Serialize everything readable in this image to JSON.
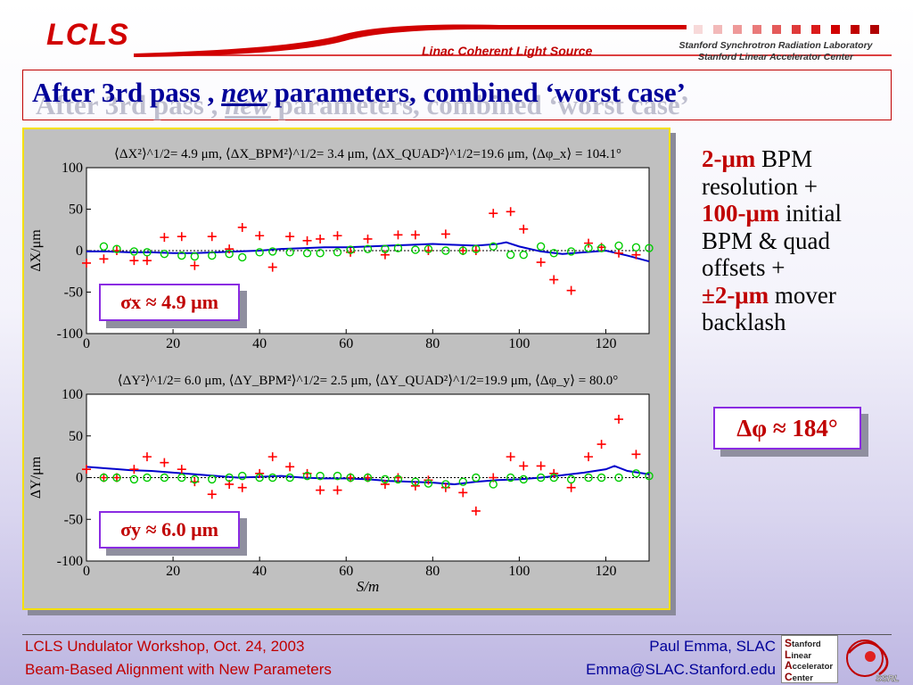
{
  "header": {
    "logo_text": "LCLS",
    "subtitle": "Linac Coherent Light Source",
    "lab_line1": "Stanford Synchrotron Radiation Laboratory",
    "lab_line2": "Stanford Linear Accelerator Center"
  },
  "title": {
    "part1": "After 3rd pass",
    "sep": " , ",
    "italic": "new",
    "part2": " parameters, combined ‘worst case’"
  },
  "right_panel": {
    "line1_red": "2-μm",
    "line1_black": " BPM",
    "line2": "resolution +",
    "line3_red": "100-μm",
    "line3_black": " initial",
    "line4": "BPM & quad",
    "line5": "offsets +",
    "line6_red": "±2-μm",
    "line6_black": " mover",
    "line7": "backlash",
    "dphi": "Δφ ≈ 184°"
  },
  "footer": {
    "left1": "LCLS Undulator Workshop, Oct. 24, 2003",
    "left2": "Beam-Based Alignment with New Parameters",
    "right1": "Paul Emma, SLAC",
    "right2": "Emma@SLAC.Stanford.edu",
    "stanford_logo": [
      "Stanford",
      "Linear",
      "Accelerator",
      "Center"
    ],
    "ssrl_logo": "SSRL"
  },
  "colors": {
    "title_blue": "#000099",
    "accent_red": "#c00000",
    "frame_yellow": "#f5e000",
    "box_purple": "#8a2be2",
    "series_blue": "#0000cc",
    "series_red": "#ff0000",
    "series_green": "#00cc00"
  },
  "chart_data": [
    {
      "type": "scatter",
      "panel": "top",
      "stats_text": "⟨ΔX²⟩^1/2= 4.9 μm, ⟨ΔX_BPM²⟩^1/2= 3.4 μm, ⟨ΔX_QUAD²⟩^1/2=19.6 μm, ⟨Δφ_x⟩ =  104.1°",
      "ylabel": "ΔX/μm",
      "xlabel": "",
      "xlim": [
        0,
        130
      ],
      "ylim": [
        -100,
        100
      ],
      "xticks": [
        0,
        20,
        40,
        60,
        80,
        100,
        120
      ],
      "yticks": [
        100,
        50,
        0,
        -50,
        -100
      ],
      "sigma_label": "σx ≈ 4.9 μm",
      "series": [
        {
          "marker": "line",
          "color": "#0000cc",
          "x": [
            0,
            5,
            10,
            15,
            20,
            25,
            30,
            35,
            40,
            45,
            50,
            55,
            60,
            65,
            70,
            75,
            80,
            85,
            90,
            95,
            97,
            100,
            105,
            110,
            115,
            120,
            125,
            130
          ],
          "y": [
            -1,
            -1,
            -2,
            -2,
            -3,
            -3,
            -2,
            -1,
            0,
            2,
            3,
            4,
            4,
            5,
            6,
            7,
            8,
            7,
            6,
            8,
            10,
            5,
            -1,
            -4,
            -2,
            0,
            -6,
            -13
          ]
        },
        {
          "marker": "plus",
          "color": "#ff0000",
          "x": [
            0,
            4,
            7,
            11,
            14,
            18,
            22,
            25,
            29,
            33,
            36,
            40,
            43,
            47,
            51,
            54,
            58,
            61,
            65,
            69,
            72,
            76,
            79,
            83,
            87,
            90,
            94,
            98,
            101,
            105,
            108,
            112,
            116,
            119,
            123,
            127
          ],
          "y": [
            -15,
            -10,
            0,
            -12,
            -12,
            16,
            17,
            -18,
            17,
            2,
            28,
            18,
            -20,
            17,
            12,
            14,
            18,
            -2,
            14,
            -5,
            19,
            19,
            0,
            20,
            0,
            0,
            45,
            47,
            26,
            -14,
            -35,
            -48,
            9,
            4,
            -3,
            -5
          ]
        },
        {
          "marker": "circle",
          "color": "#00cc00",
          "x": [
            4,
            7,
            11,
            14,
            18,
            22,
            25,
            29,
            33,
            36,
            40,
            43,
            47,
            51,
            54,
            58,
            61,
            65,
            69,
            72,
            76,
            79,
            83,
            87,
            90,
            94,
            98,
            101,
            105,
            108,
            112,
            116,
            119,
            123,
            127,
            130
          ],
          "y": [
            5,
            2,
            -1,
            -2,
            -4,
            -6,
            -7,
            -6,
            -4,
            -8,
            -2,
            -1,
            -2,
            -3,
            -3,
            -2,
            1,
            2,
            2,
            3,
            1,
            2,
            0,
            0,
            2,
            5,
            -5,
            -5,
            5,
            -3,
            -1,
            3,
            3,
            6,
            4,
            3
          ]
        }
      ]
    },
    {
      "type": "scatter",
      "panel": "bottom",
      "stats_text": "⟨ΔY²⟩^1/2= 6.0 μm, ⟨ΔY_BPM²⟩^1/2= 2.5 μm, ⟨ΔY_QUAD²⟩^1/2=19.9 μm, ⟨Δφ_y⟩ =   80.0°",
      "ylabel": "ΔY/μm",
      "xlabel": "S/m",
      "xlim": [
        0,
        130
      ],
      "ylim": [
        -100,
        100
      ],
      "xticks": [
        0,
        20,
        40,
        60,
        80,
        100,
        120
      ],
      "yticks": [
        100,
        50,
        0,
        -50,
        -100
      ],
      "sigma_label": "σy ≈ 6.0 μm",
      "series": [
        {
          "marker": "line",
          "color": "#0000cc",
          "x": [
            0,
            5,
            10,
            15,
            20,
            25,
            30,
            35,
            40,
            45,
            50,
            55,
            60,
            65,
            70,
            75,
            80,
            85,
            90,
            95,
            100,
            105,
            110,
            115,
            120,
            122,
            125,
            130
          ],
          "y": [
            13,
            11,
            9,
            8,
            6,
            4,
            2,
            0,
            1,
            2,
            0,
            -1,
            -1,
            -2,
            -4,
            -5,
            -6,
            -8,
            -5,
            -3,
            -2,
            0,
            3,
            6,
            10,
            14,
            8,
            4
          ]
        },
        {
          "marker": "plus",
          "color": "#ff0000",
          "x": [
            0,
            4,
            7,
            11,
            14,
            18,
            22,
            25,
            29,
            33,
            36,
            40,
            43,
            47,
            51,
            54,
            58,
            61,
            65,
            69,
            72,
            76,
            79,
            83,
            87,
            90,
            94,
            98,
            101,
            105,
            108,
            112,
            116,
            119,
            123,
            127
          ],
          "y": [
            10,
            0,
            0,
            10,
            25,
            18,
            10,
            -5,
            -20,
            -8,
            -12,
            5,
            25,
            13,
            5,
            -15,
            -15,
            0,
            0,
            -8,
            0,
            -10,
            -3,
            -12,
            -18,
            -40,
            0,
            25,
            14,
            14,
            5,
            -12,
            25,
            40,
            70,
            28
          ]
        },
        {
          "marker": "circle",
          "color": "#00cc00",
          "x": [
            4,
            7,
            11,
            14,
            18,
            22,
            25,
            29,
            33,
            36,
            40,
            43,
            47,
            51,
            54,
            58,
            61,
            65,
            69,
            72,
            76,
            79,
            83,
            87,
            90,
            94,
            98,
            101,
            105,
            108,
            112,
            116,
            119,
            123,
            127,
            130
          ],
          "y": [
            0,
            0,
            -2,
            0,
            0,
            0,
            -2,
            -2,
            0,
            2,
            0,
            0,
            0,
            2,
            2,
            2,
            0,
            0,
            -2,
            -2,
            -5,
            -7,
            -8,
            -5,
            0,
            -8,
            0,
            -2,
            0,
            0,
            -2,
            0,
            0,
            0,
            5,
            2
          ]
        }
      ]
    }
  ]
}
